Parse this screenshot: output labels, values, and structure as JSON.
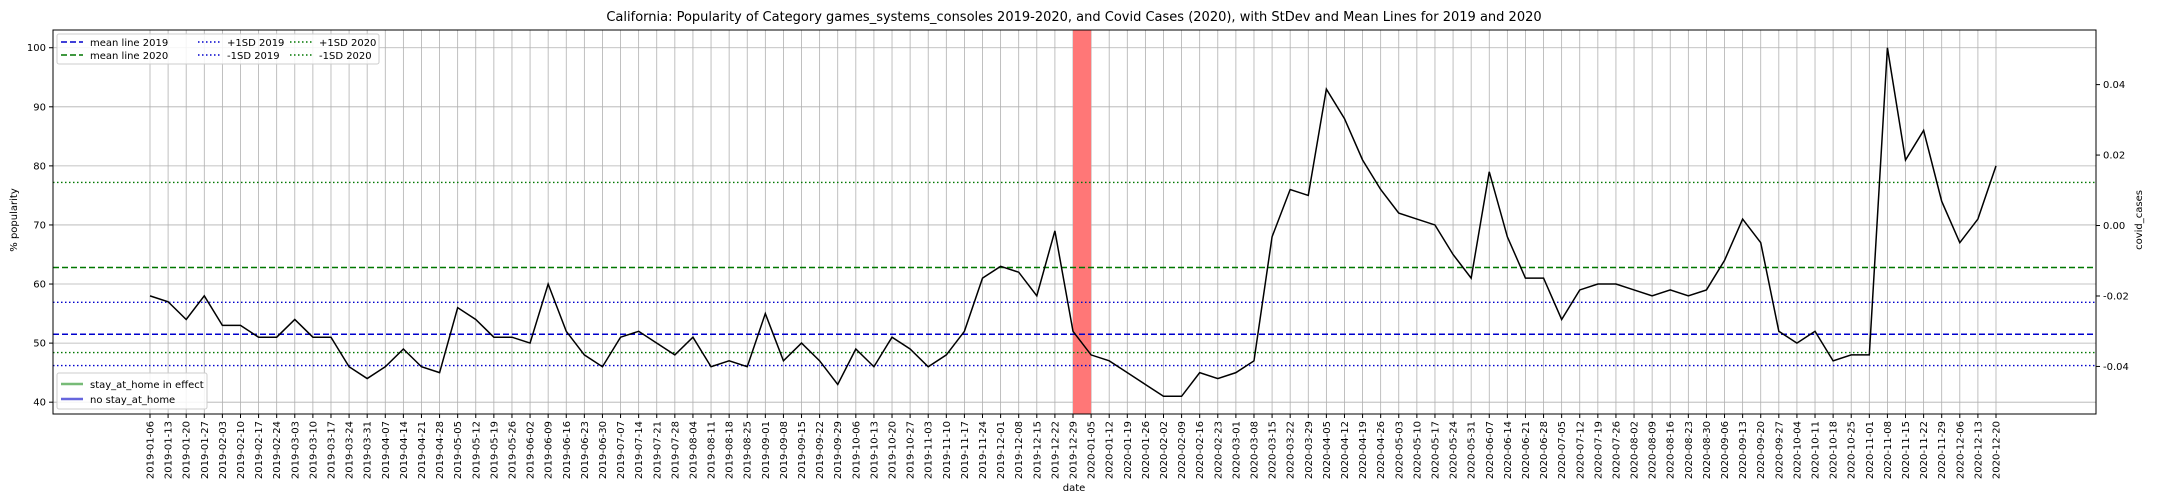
{
  "chart_data": {
    "type": "line",
    "title": "California: Popularity of Category games_systems_consoles 2019-2020, and Covid Cases (2020), with StDev and Mean Lines for 2019 and 2020",
    "xlabel": "date",
    "ylabel": "% popularity",
    "y2label": "covid_cases",
    "ylim": [
      38,
      103
    ],
    "y2lim": [
      -0.0535,
      0.0555
    ],
    "yticks": [
      40,
      50,
      60,
      70,
      80,
      90,
      100
    ],
    "y2ticks": [
      "0.04",
      "0.02",
      "0.00",
      "-0.02",
      "-0.04"
    ],
    "y2tick_values": [
      0.04,
      0.02,
      0.0,
      -0.02,
      -0.04
    ],
    "grid": true,
    "x": [
      "2019-01-06",
      "2019-01-13",
      "2019-01-20",
      "2019-01-27",
      "2019-02-03",
      "2019-02-10",
      "2019-02-17",
      "2019-02-24",
      "2019-03-03",
      "2019-03-10",
      "2019-03-17",
      "2019-03-24",
      "2019-03-31",
      "2019-04-07",
      "2019-04-14",
      "2019-04-21",
      "2019-04-28",
      "2019-05-05",
      "2019-05-12",
      "2019-05-19",
      "2019-05-26",
      "2019-06-02",
      "2019-06-09",
      "2019-06-16",
      "2019-06-23",
      "2019-06-30",
      "2019-07-07",
      "2019-07-14",
      "2019-07-21",
      "2019-07-28",
      "2019-08-04",
      "2019-08-11",
      "2019-08-18",
      "2019-08-25",
      "2019-09-01",
      "2019-09-08",
      "2019-09-15",
      "2019-09-22",
      "2019-09-29",
      "2019-10-06",
      "2019-10-13",
      "2019-10-20",
      "2019-10-27",
      "2019-11-03",
      "2019-11-10",
      "2019-11-17",
      "2019-11-24",
      "2019-12-01",
      "2019-12-08",
      "2019-12-15",
      "2019-12-22",
      "2019-12-29",
      "2020-01-05",
      "2020-01-12",
      "2020-01-19",
      "2020-01-26",
      "2020-02-02",
      "2020-02-09",
      "2020-02-16",
      "2020-02-23",
      "2020-03-01",
      "2020-03-08",
      "2020-03-15",
      "2020-03-22",
      "2020-03-29",
      "2020-04-05",
      "2020-04-12",
      "2020-04-19",
      "2020-04-26",
      "2020-05-03",
      "2020-05-10",
      "2020-05-17",
      "2020-05-24",
      "2020-05-31",
      "2020-06-07",
      "2020-06-14",
      "2020-06-21",
      "2020-06-28",
      "2020-07-05",
      "2020-07-12",
      "2020-07-19",
      "2020-07-26",
      "2020-08-02",
      "2020-08-09",
      "2020-08-16",
      "2020-08-23",
      "2020-08-30",
      "2020-09-06",
      "2020-09-13",
      "2020-09-20",
      "2020-09-27",
      "2020-10-04",
      "2020-10-11",
      "2020-10-18",
      "2020-10-25",
      "2020-11-01",
      "2020-11-08",
      "2020-11-15",
      "2020-11-22",
      "2020-11-29",
      "2020-12-06",
      "2020-12-13",
      "2020-12-20"
    ],
    "series": [
      {
        "values": [
          58,
          57,
          54,
          58,
          53,
          53,
          51,
          51,
          54,
          51,
          51,
          46,
          44,
          46,
          49,
          46,
          45,
          56,
          54,
          51,
          51,
          50,
          60,
          52,
          48,
          46,
          51,
          52,
          50,
          48,
          51,
          46,
          47,
          46,
          55,
          47,
          50,
          47,
          43,
          49,
          46,
          51,
          49,
          46,
          48,
          52,
          61,
          63,
          62,
          58,
          69,
          52,
          48,
          47,
          45,
          43,
          41,
          41,
          45,
          44,
          45,
          47,
          68,
          76,
          75,
          93,
          88,
          81,
          76,
          72,
          71,
          70,
          65,
          61,
          79,
          68,
          61,
          61,
          54,
          59,
          60,
          60,
          59,
          58,
          59,
          58,
          59,
          64,
          71,
          67,
          52,
          50,
          52,
          47,
          48,
          48,
          100,
          81,
          86,
          74,
          67,
          71,
          80
        ],
        "color": "#000000"
      }
    ],
    "reference_lines": [
      {
        "name": "mean line 2019",
        "value": 51.5,
        "color": "#0000cc",
        "style": "dashed"
      },
      {
        "name": "mean line 2020",
        "value": 62.8,
        "color": "#007700",
        "style": "dashed"
      },
      {
        "name": "+1SD 2019",
        "value": 56.9,
        "color": "#0000cc",
        "style": "dotted"
      },
      {
        "name": "-1SD 2019",
        "value": 46.2,
        "color": "#0000cc",
        "style": "dotted"
      },
      {
        "name": "+1SD 2020",
        "value": 77.2,
        "color": "#007700",
        "style": "dotted"
      },
      {
        "name": "-1SD 2020",
        "value": 48.4,
        "color": "#007700",
        "style": "dotted"
      }
    ],
    "highlight_span": {
      "from": "2019-12-29",
      "to": "2020-01-05",
      "color": "#ff7777"
    },
    "legend": {
      "placement": "top-left",
      "columns": [
        [
          "mean line 2019",
          "mean line 2020"
        ],
        [
          "+1SD 2019",
          "-1SD 2019"
        ],
        [
          "+1SD 2020",
          "-1SD 2020"
        ]
      ]
    },
    "legend2": {
      "placement": "bottom-left",
      "items": [
        {
          "label": "stay_at_home in effect",
          "color": "#77bb77"
        },
        {
          "label": "no stay_at_home",
          "color": "#6666dd"
        }
      ]
    }
  }
}
